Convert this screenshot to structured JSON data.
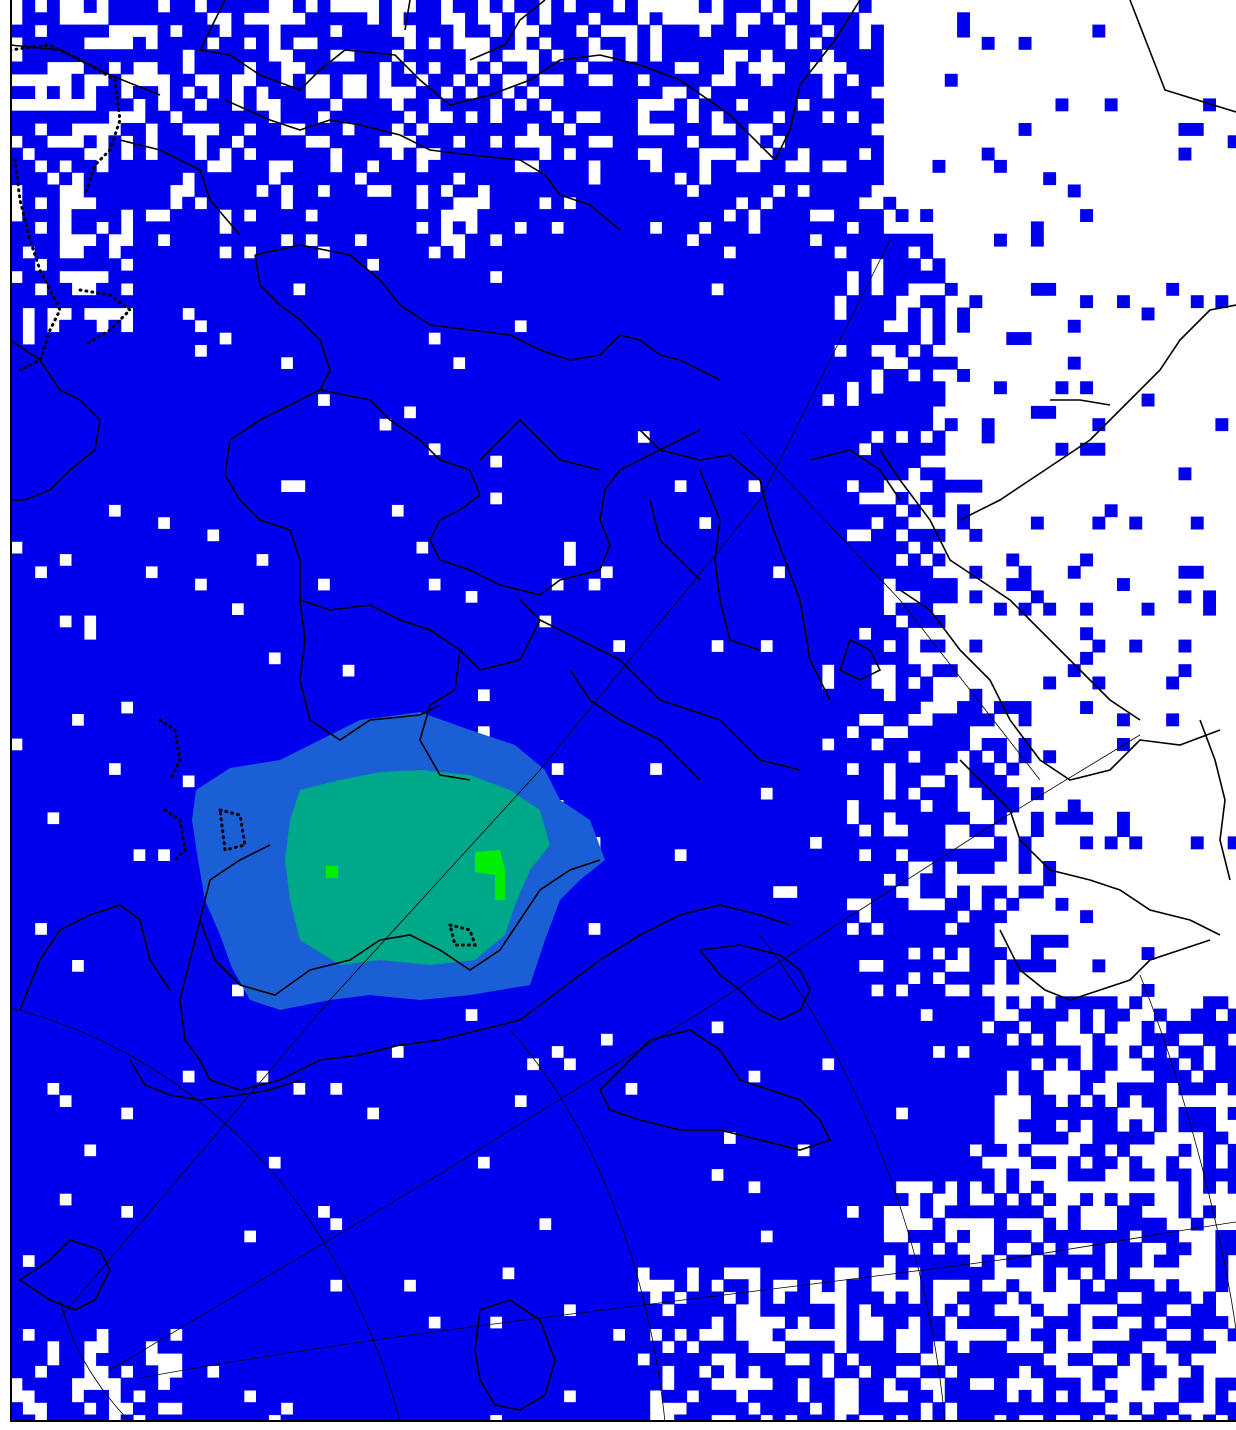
{
  "map": {
    "projection": "polar-stereographic",
    "field": "gridded density",
    "colors": {
      "background": "#ffffff",
      "low": "#0000ee",
      "medium": "#1a5fd6",
      "high": "#00a88a",
      "peak": "#00ee00",
      "outline": "#000000"
    },
    "layers": [
      "grid-cells",
      "coastlines",
      "country-borders",
      "disputed-borders",
      "graticule"
    ]
  }
}
